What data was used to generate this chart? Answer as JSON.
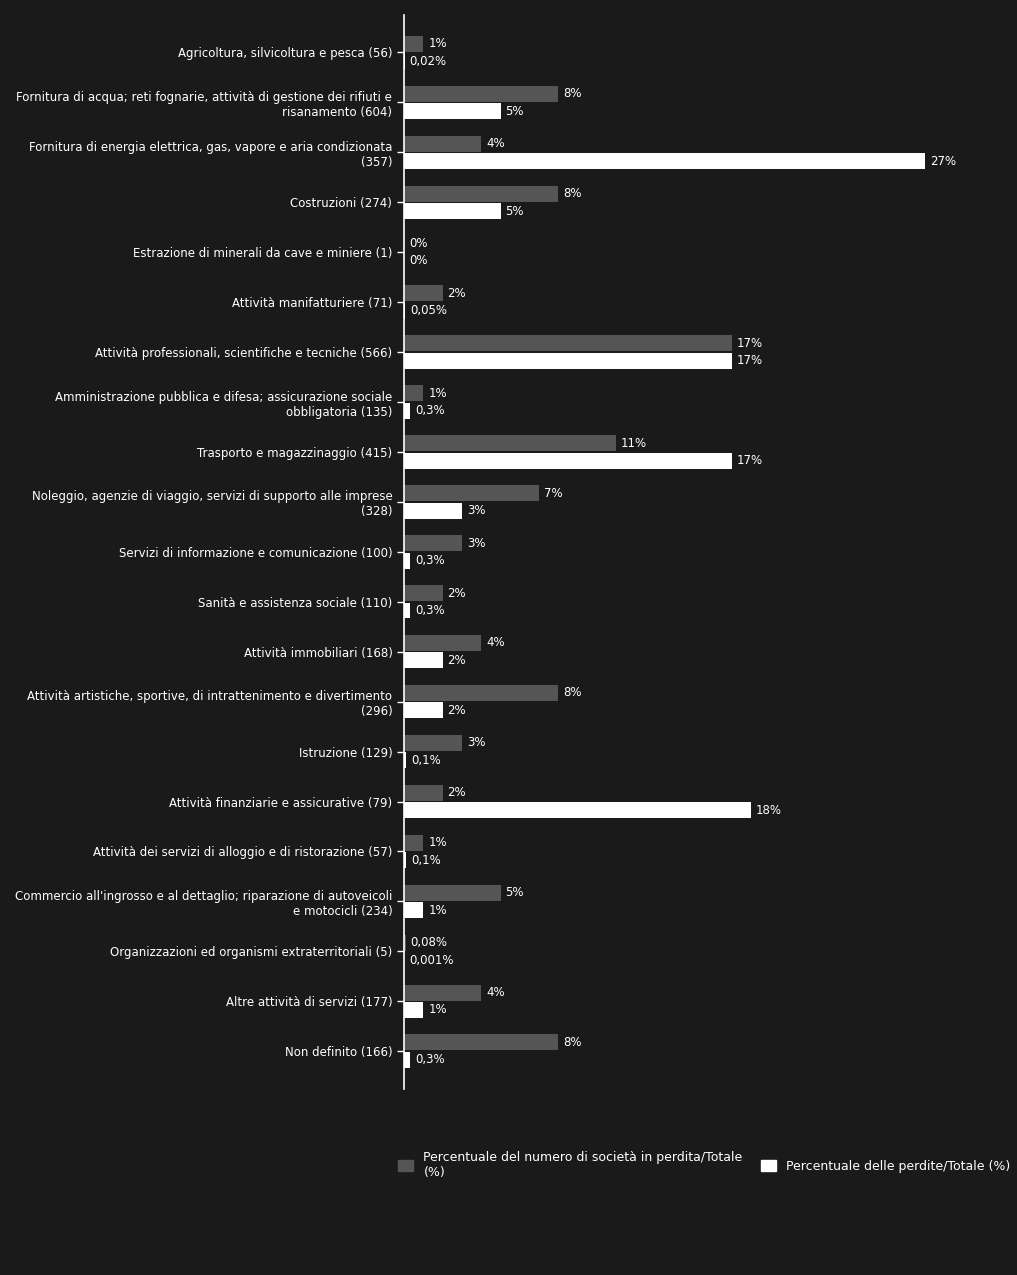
{
  "categories": [
    "Agricoltura, silvicoltura e pesca (56)",
    "Fornitura di acqua; reti fognarie, attività di gestione dei rifiuti e\nrisanamento (604)",
    "Fornitura di energia elettrica, gas, vapore e aria condizionata\n(357)",
    "Costruzioni (274)",
    "Estrazione di minerali da cave e miniere (1)",
    "Attività manifatturiere (71)",
    "Attività professionali, scientifiche e tecniche (566)",
    "Amministrazione pubblica e difesa; assicurazione sociale\nobbligatoria (135)",
    "Trasporto e magazzinaggio (415)",
    "Noleggio, agenzie di viaggio, servizi di supporto alle imprese\n(328)",
    "Servizi di informazione e comunicazione (100)",
    "Sanità e assistenza sociale (110)",
    "Attività immobiliari (168)",
    "Attività artistiche, sportive, di intrattenimento e divertimento\n(296)",
    "Istruzione (129)",
    "Attività finanziarie e assicurative (79)",
    "Attività dei servizi di alloggio e di ristorazione (57)",
    "Commercio all'ingrosso e al dettaglio; riparazione di autoveicoli\ne motocicli (234)",
    "Organizzazioni ed organismi extraterritoriali (5)",
    "Altre attività di servizi (177)",
    "Non definito (166)"
  ],
  "societa_pct": [
    1,
    8,
    4,
    8,
    0,
    2,
    17,
    1,
    11,
    7,
    3,
    2,
    4,
    8,
    3,
    2,
    1,
    5,
    0.08,
    4,
    8
  ],
  "perdite_pct": [
    0.02,
    5,
    27,
    5,
    0,
    0.05,
    17,
    0.3,
    17,
    3,
    0.3,
    0.3,
    2,
    2,
    0.1,
    18,
    0.1,
    1,
    0.001,
    1,
    0.3
  ],
  "societa_labels": [
    "1%",
    "8%",
    "4%",
    "8%",
    "0%",
    "2%",
    "17%",
    "1%",
    "11%",
    "7%",
    "3%",
    "2%",
    "4%",
    "8%",
    "3%",
    "2%",
    "1%",
    "5%",
    "0,08%",
    "4%",
    "8%"
  ],
  "perdite_labels": [
    "0,02%",
    "5%",
    "27%",
    "5%",
    "0%",
    "0,05%",
    "17%",
    "0,3%",
    "17%",
    "3%",
    "0,3%",
    "0,3%",
    "2%",
    "2%",
    "0,1%",
    "18%",
    "0,1%",
    "1%",
    "0,001%",
    "1%",
    "0,3%"
  ],
  "bar_color_societa": "#555555",
  "bar_color_perdite": "#ffffff",
  "background_color": "#1a1a1a",
  "text_color": "#ffffff",
  "legend_label_societa": "Percentuale del numero di società in perdita/Totale\n(%)",
  "legend_label_perdite": "Percentuale delle perdite/Totale (%)"
}
